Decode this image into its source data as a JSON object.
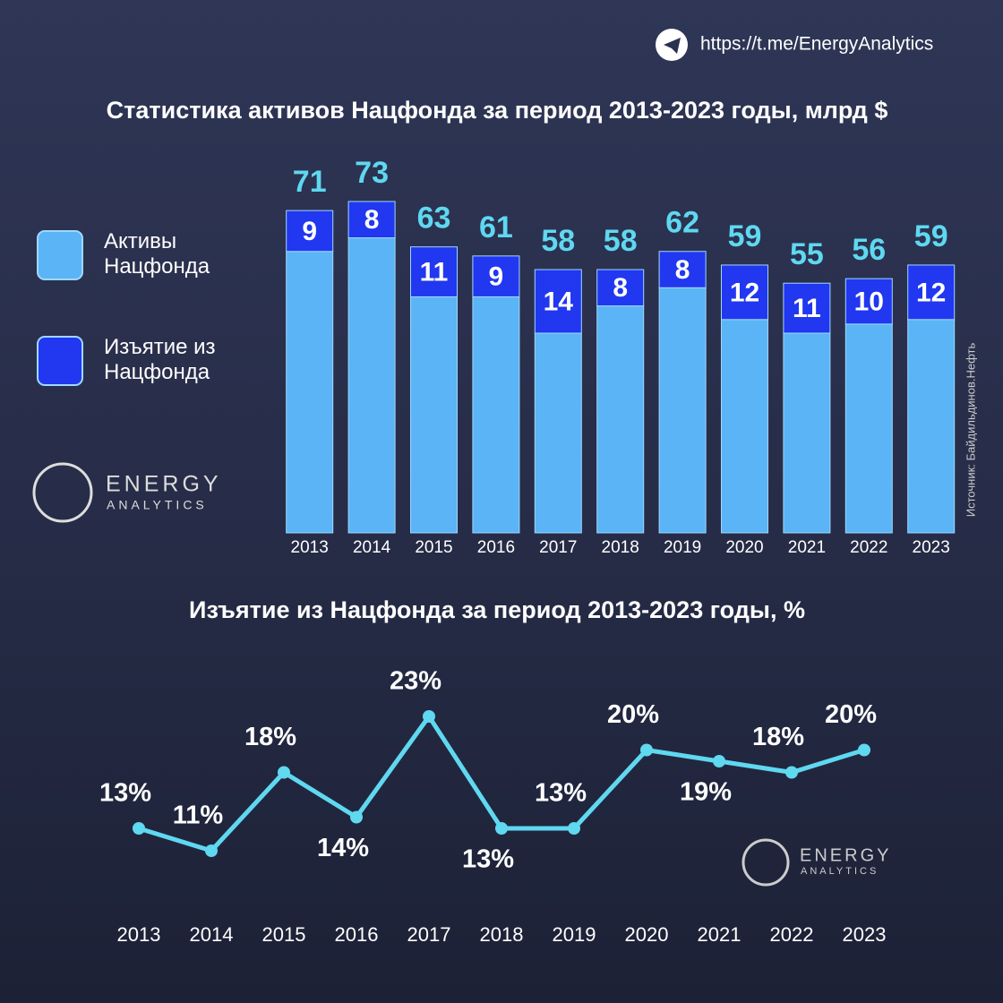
{
  "header": {
    "link": "https://t.me/EnergyAnalytics"
  },
  "source": "Источник: Байдильдинов.Нефть",
  "logo": {
    "line1": "ENERGY",
    "line2": "ANALYTICS"
  },
  "chart_data": [
    {
      "type": "stacked_bar",
      "title": "Статистика активов Нацфонда за период 2013-2023 годы, млрд $",
      "categories": [
        "2013",
        "2014",
        "2015",
        "2016",
        "2017",
        "2018",
        "2019",
        "2020",
        "2021",
        "2022",
        "2023"
      ],
      "series": [
        {
          "name": "Активы Нацфонда",
          "color": "#5ab4f5",
          "values": [
            62,
            65,
            52,
            52,
            44,
            50,
            54,
            47,
            44,
            46,
            47
          ]
        },
        {
          "name": "Изъятие из Нацфонда",
          "color": "#2137f0",
          "values": [
            9,
            8,
            11,
            9,
            14,
            8,
            8,
            12,
            11,
            10,
            12
          ]
        }
      ],
      "totals": [
        71,
        73,
        63,
        61,
        58,
        58,
        62,
        59,
        55,
        56,
        59
      ]
    },
    {
      "type": "line",
      "title": "Изъятие из Нацфонда за период 2013-2023 годы, %",
      "categories": [
        "2013",
        "2014",
        "2015",
        "2016",
        "2017",
        "2018",
        "2019",
        "2020",
        "2021",
        "2022",
        "2023"
      ],
      "values": [
        13,
        11,
        18,
        14,
        23,
        13,
        13,
        20,
        19,
        18,
        20
      ],
      "value_labels": [
        "13%",
        "11%",
        "18%",
        "14%",
        "23%",
        "13%",
        "13%",
        "20%",
        "19%",
        "18%",
        "20%"
      ],
      "color": "#5fd8f0"
    }
  ]
}
